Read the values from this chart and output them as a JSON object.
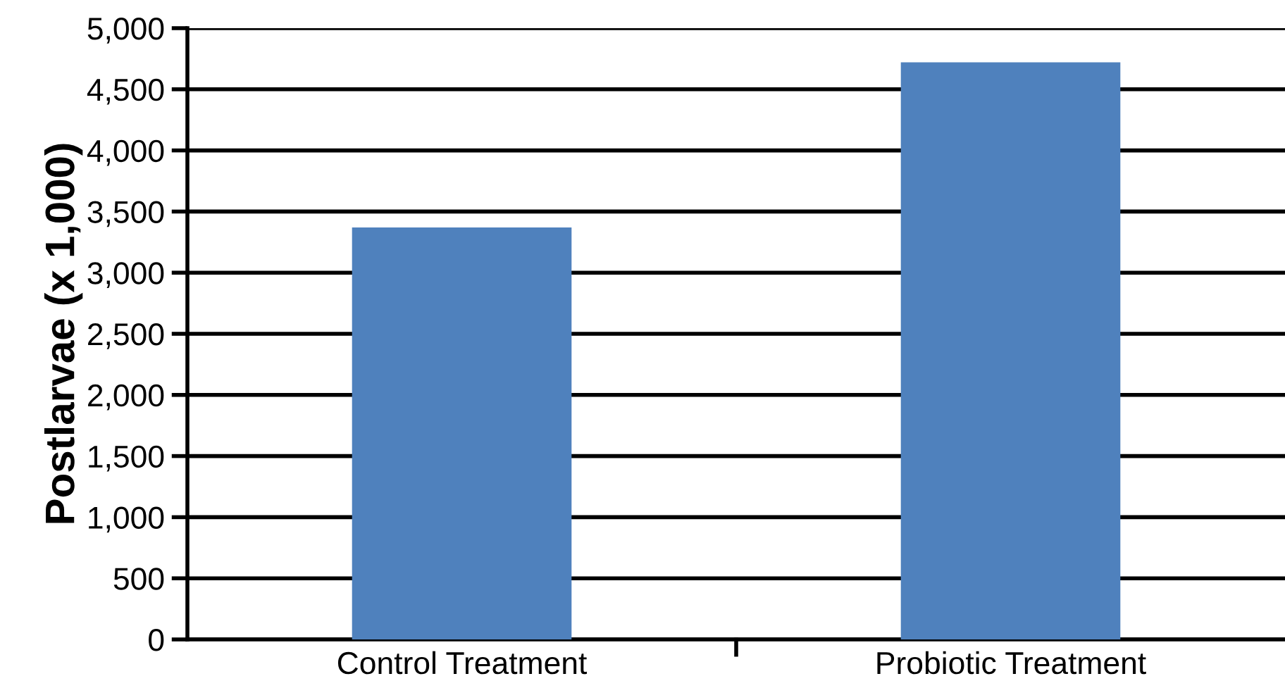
{
  "chart_data": {
    "type": "bar",
    "ylabel": "Postlarvae (x 1,000)",
    "categories": [
      "Control Treatment",
      "Probiotic Treatment"
    ],
    "values": [
      3370,
      4720
    ],
    "color": "#4f81bd",
    "ylim": [
      0,
      5000
    ],
    "yticks": [
      {
        "value": 0,
        "label": "0"
      },
      {
        "value": 500,
        "label": "500"
      },
      {
        "value": 1000,
        "label": "1,000"
      },
      {
        "value": 1500,
        "label": "1,500"
      },
      {
        "value": 2000,
        "label": "2,000"
      },
      {
        "value": 2500,
        "label": "2,500"
      },
      {
        "value": 3000,
        "label": "3,000"
      },
      {
        "value": 3500,
        "label": "3,500"
      },
      {
        "value": 4000,
        "label": "4,000"
      },
      {
        "value": 4500,
        "label": "4,500"
      },
      {
        "value": 5000,
        "label": "5,000"
      }
    ],
    "grid": "y"
  }
}
